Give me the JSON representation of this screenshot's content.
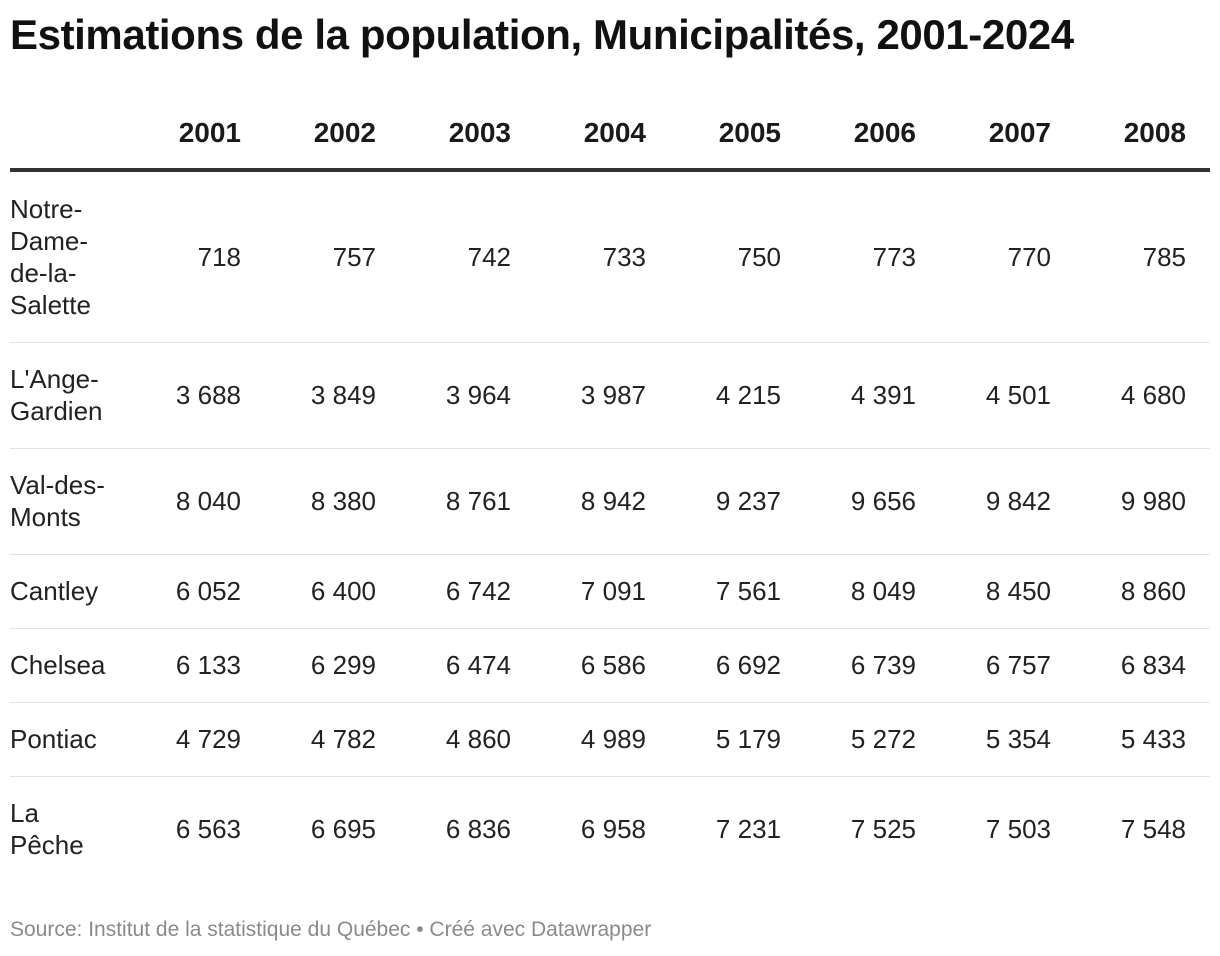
{
  "chart_data": {
    "type": "table",
    "title": "Estimations de la population, Municipalités, 2001-2024",
    "columns": [
      "2001",
      "2002",
      "2003",
      "2004",
      "2005",
      "2006",
      "2007",
      "2008"
    ],
    "rows": [
      {
        "name": [
          "Notre-",
          "Dame-",
          "de-la-",
          "Salette"
        ],
        "values": [
          "718",
          "757",
          "742",
          "733",
          "750",
          "773",
          "770",
          "785"
        ]
      },
      {
        "name": [
          "L'Ange-",
          "Gardien"
        ],
        "values": [
          "3 688",
          "3 849",
          "3 964",
          "3 987",
          "4 215",
          "4 391",
          "4 501",
          "4 680"
        ]
      },
      {
        "name": [
          "Val-des-",
          "Monts"
        ],
        "values": [
          "8 040",
          "8 380",
          "8 761",
          "8 942",
          "9 237",
          "9 656",
          "9 842",
          "9 980"
        ]
      },
      {
        "name": [
          "Cantley"
        ],
        "values": [
          "6 052",
          "6 400",
          "6 742",
          "7 091",
          "7 561",
          "8 049",
          "8 450",
          "8 860"
        ]
      },
      {
        "name": [
          "Chelsea"
        ],
        "values": [
          "6 133",
          "6 299",
          "6 474",
          "6 586",
          "6 692",
          "6 739",
          "6 757",
          "6 834"
        ]
      },
      {
        "name": [
          "Pontiac"
        ],
        "values": [
          "4 729",
          "4 782",
          "4 860",
          "4 989",
          "5 179",
          "5 272",
          "5 354",
          "5 433"
        ]
      },
      {
        "name": [
          "La",
          "Pêche"
        ],
        "values": [
          "6 563",
          "6 695",
          "6 836",
          "6 958",
          "7 231",
          "7 525",
          "7 503",
          "7 548"
        ]
      }
    ],
    "source": "Source: Institut de la statistique du Québec • Créé avec Datawrapper"
  }
}
